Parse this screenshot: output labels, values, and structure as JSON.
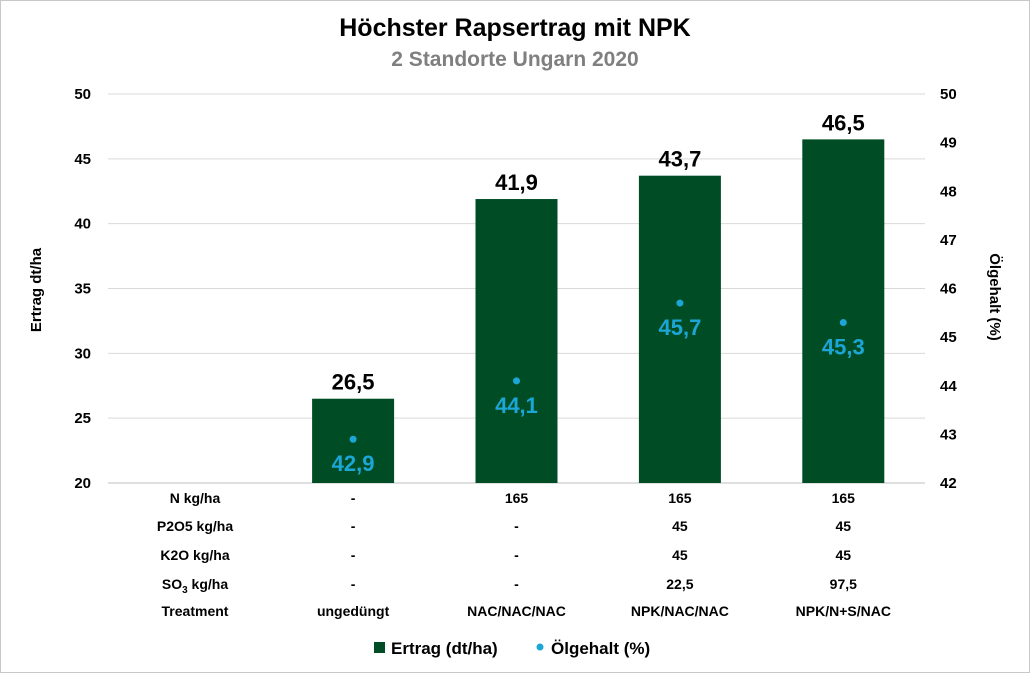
{
  "chart_data": {
    "type": "bar",
    "title": "Höchster Rapsertrag mit NPK",
    "subtitle": "2 Standorte Ungarn 2020",
    "ylabel": "Ertrag dt/ha",
    "y2label": "Ölgehalt (%)",
    "ylim": [
      20,
      50
    ],
    "y2lim": [
      42,
      50
    ],
    "yticks": [
      "20",
      "25",
      "30",
      "35",
      "40",
      "45",
      "50"
    ],
    "y2ticks": [
      "42",
      "43",
      "44",
      "45",
      "46",
      "47",
      "48",
      "49",
      "50"
    ],
    "categories": [
      "ungedüngt",
      "NAC/NAC/NAC",
      "NPK/NAC/NAC",
      "NPK/N+S/NAC"
    ],
    "series": [
      {
        "name": "Ertrag (dt/ha)",
        "kind": "bar",
        "axis": "left",
        "color": "#004d25",
        "values": [
          26.5,
          41.9,
          43.7,
          46.5
        ],
        "labels": [
          "26,5",
          "41,9",
          "43,7",
          "46,5"
        ]
      },
      {
        "name": "Ölgehalt (%)",
        "kind": "scatter",
        "axis": "right",
        "color": "#1ba6d6",
        "values": [
          42.9,
          44.1,
          45.7,
          45.3
        ],
        "labels": [
          "42,9",
          "44,1",
          "45,7",
          "45,3"
        ]
      }
    ],
    "table": {
      "rows": [
        {
          "label": "N kg/ha",
          "values": [
            "-",
            "165",
            "165",
            "165"
          ]
        },
        {
          "label": "P2O5 kg/ha",
          "values": [
            "-",
            "-",
            "45",
            "45"
          ]
        },
        {
          "label": "K2O kg/ha",
          "values": [
            "-",
            "-",
            "45",
            "45"
          ]
        },
        {
          "label_main": "SO",
          "label_sub": "3",
          "label_rest": " kg/ha",
          "values": [
            "-",
            "-",
            "22,5",
            "97,5"
          ]
        },
        {
          "label": "Treatment",
          "values": [
            "ungedüngt",
            "NAC/NAC/NAC",
            "NPK/NAC/NAC",
            "NPK/N+S/NAC"
          ]
        }
      ]
    },
    "grid": true,
    "legend": "bottom"
  }
}
